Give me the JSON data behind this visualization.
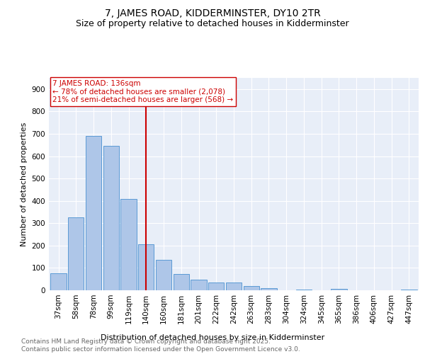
{
  "title1": "7, JAMES ROAD, KIDDERMINSTER, DY10 2TR",
  "title2": "Size of property relative to detached houses in Kidderminster",
  "xlabel": "Distribution of detached houses by size in Kidderminster",
  "ylabel": "Number of detached properties",
  "categories": [
    "37sqm",
    "58sqm",
    "78sqm",
    "99sqm",
    "119sqm",
    "140sqm",
    "160sqm",
    "181sqm",
    "201sqm",
    "222sqm",
    "242sqm",
    "263sqm",
    "283sqm",
    "304sqm",
    "324sqm",
    "345sqm",
    "365sqm",
    "386sqm",
    "406sqm",
    "427sqm",
    "447sqm"
  ],
  "values": [
    75,
    325,
    690,
    645,
    410,
    207,
    137,
    72,
    47,
    35,
    35,
    20,
    10,
    0,
    3,
    0,
    5,
    0,
    0,
    0,
    4
  ],
  "bar_color": "#aec6e8",
  "bar_edge_color": "#5b9bd5",
  "vline_index": 5,
  "vline_color": "#cc0000",
  "annotation_text": "7 JAMES ROAD: 136sqm\n← 78% of detached houses are smaller (2,078)\n21% of semi-detached houses are larger (568) →",
  "annotation_color": "#cc0000",
  "ylim": [
    0,
    950
  ],
  "yticks": [
    0,
    100,
    200,
    300,
    400,
    500,
    600,
    700,
    800,
    900
  ],
  "bg_color": "#e8eef8",
  "footer": "Contains HM Land Registry data © Crown copyright and database right 2025.\nContains public sector information licensed under the Open Government Licence v3.0.",
  "title1_fontsize": 10,
  "title2_fontsize": 9,
  "xlabel_fontsize": 8,
  "ylabel_fontsize": 8,
  "tick_fontsize": 7.5,
  "annotation_fontsize": 7.5,
  "footer_fontsize": 6.5
}
